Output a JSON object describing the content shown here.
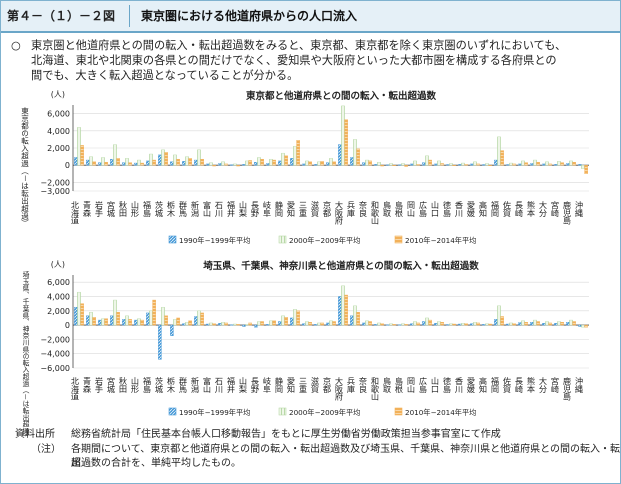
{
  "header": {
    "figure_number": "第４－（１）－２図",
    "title": "東京圏における他道府県からの人口流入"
  },
  "summary": {
    "bullet": "○",
    "lines": [
      "東京圏と他道府県との間の転入・転出超過数をみると、東京都、東京都を除く東京圏のいずれにおいても、",
      "北海道、東北や北関東の各県との間だけでなく、愛知県や大阪府といった大都市圏を構成する各府県との",
      "間でも、大きく転入超過となっていることが分かる。"
    ]
  },
  "colors": {
    "series_1990": "#4a9bd8",
    "series_2000": "#b9d9a9",
    "series_2010": "#f2b15a",
    "axis": "#444444",
    "grid": "#d9d9d9",
    "frame": "#7fb2cf"
  },
  "chart_data": [
    {
      "type": "bar",
      "title": "東京都と他道府県との間の転入・転出超過数",
      "unit_label": "(人)",
      "ylabel": "東京都の転入超過（－は転出超過）",
      "ylim": [
        -3000,
        7000
      ],
      "yticks": [
        7000,
        6000,
        4000,
        2000,
        0,
        -2000,
        -3000
      ],
      "ytick_labels": [
        "(人)",
        "6,000",
        "4,000",
        "2,000",
        "0",
        "−2,000",
        "−3,000"
      ],
      "categories": [
        "北海道",
        "青森",
        "岩手",
        "宮城",
        "秋田",
        "山形",
        "福島",
        "茨城",
        "栃木",
        "群馬",
        "新潟",
        "富山",
        "石川",
        "福井",
        "山梨",
        "長野",
        "岐阜",
        "静岡",
        "愛知",
        "三重",
        "滋賀",
        "京都",
        "大阪府",
        "兵庫",
        "奈良",
        "和歌山",
        "鳥取",
        "島根",
        "岡山",
        "広島",
        "山口",
        "徳島",
        "香川",
        "愛媛",
        "高知",
        "福岡",
        "佐賀",
        "長崎",
        "熊本",
        "大分",
        "宮崎",
        "鹿児島",
        "沖縄"
      ],
      "series": [
        {
          "name": "1990年−1999年平均",
          "values": [
            900,
            600,
            300,
            700,
            300,
            250,
            500,
            1200,
            400,
            450,
            600,
            150,
            200,
            50,
            100,
            350,
            200,
            500,
            800,
            150,
            100,
            300,
            2400,
            900,
            300,
            100,
            50,
            50,
            150,
            300,
            150,
            80,
            100,
            150,
            80,
            600,
            80,
            150,
            200,
            150,
            100,
            200,
            100
          ]
        },
        {
          "name": "2000年−2009年平均",
          "values": [
            4400,
            1000,
            900,
            2400,
            800,
            600,
            1300,
            1800,
            1200,
            1000,
            1800,
            300,
            400,
            150,
            500,
            900,
            700,
            1400,
            2200,
            500,
            400,
            800,
            6900,
            3000,
            600,
            350,
            200,
            200,
            500,
            1100,
            500,
            200,
            250,
            400,
            200,
            3300,
            250,
            500,
            600,
            400,
            450,
            500,
            -400
          ]
        },
        {
          "name": "2010年−2014年平均",
          "values": [
            2300,
            400,
            350,
            800,
            300,
            250,
            600,
            1500,
            700,
            800,
            700,
            -100,
            150,
            -100,
            550,
            700,
            600,
            1100,
            2900,
            400,
            450,
            400,
            5300,
            1900,
            500,
            -100,
            -50,
            -150,
            100,
            600,
            200,
            -50,
            100,
            150,
            -50,
            1700,
            150,
            300,
            350,
            150,
            300,
            350,
            -1000
          ]
        }
      ],
      "legend": [
        "1990年−1999年平均",
        "2000年−2009年平均",
        "2010年−2014年平均"
      ]
    },
    {
      "type": "bar",
      "title": "埼玉県、千葉県、神奈川県と他道府県との間の転入・転出超過数",
      "unit_label": "(人)",
      "ylabel": "埼玉県、千葉県、神奈川県の転入超過（－は転出超過）",
      "ylim": [
        -6000,
        7000
      ],
      "yticks": [
        7000,
        6000,
        4000,
        2000,
        0,
        -2000,
        -4000,
        -6000
      ],
      "ytick_labels": [
        "(人)",
        "6,000",
        "4,000",
        "2,000",
        "0",
        "−2,000",
        "−4,000",
        "−6,000"
      ],
      "categories": [
        "北海道",
        "青森",
        "岩手",
        "宮城",
        "秋田",
        "山形",
        "福島",
        "茨城",
        "栃木",
        "群馬",
        "新潟",
        "富山",
        "石川",
        "福井",
        "山梨",
        "長野",
        "岐阜",
        "静岡",
        "愛知",
        "三重",
        "滋賀",
        "京都",
        "大阪府",
        "兵庫",
        "奈良",
        "和歌山",
        "鳥取",
        "島根",
        "岡山",
        "広島",
        "山口",
        "徳島",
        "香川",
        "愛媛",
        "高知",
        "福岡",
        "佐賀",
        "長崎",
        "熊本",
        "大分",
        "宮崎",
        "鹿児島",
        "沖縄"
      ],
      "series": [
        {
          "name": "1990年−1999年平均",
          "values": [
            2500,
            1300,
            700,
            1300,
            800,
            700,
            1700,
            -4800,
            -1500,
            200,
            1200,
            150,
            250,
            50,
            -200,
            -300,
            100,
            500,
            1000,
            200,
            100,
            300,
            4000,
            1300,
            300,
            100,
            50,
            50,
            200,
            500,
            250,
            80,
            150,
            200,
            100,
            800,
            150,
            350,
            400,
            250,
            250,
            400,
            -200
          ]
        },
        {
          "name": "2000年−2009年平均",
          "values": [
            4600,
            1800,
            900,
            3500,
            1300,
            900,
            2000,
            2500,
            800,
            400,
            2000,
            300,
            400,
            150,
            100,
            500,
            600,
            1300,
            2200,
            500,
            300,
            600,
            5500,
            2700,
            600,
            300,
            200,
            200,
            500,
            1000,
            500,
            200,
            250,
            400,
            200,
            2700,
            300,
            600,
            700,
            500,
            500,
            700,
            -300
          ]
        },
        {
          "name": "2010年−2014年平均",
          "values": [
            3000,
            1100,
            900,
            1800,
            800,
            700,
            3500,
            1300,
            1000,
            600,
            1700,
            200,
            300,
            100,
            300,
            500,
            600,
            1100,
            2000,
            400,
            300,
            500,
            4200,
            1800,
            500,
            200,
            100,
            100,
            300,
            700,
            400,
            150,
            200,
            300,
            150,
            1200,
            200,
            400,
            500,
            300,
            400,
            500,
            -300
          ]
        }
      ],
      "legend": [
        "1990年−1999年平均",
        "2000年−2009年平均",
        "2010年−2014年平均"
      ]
    }
  ],
  "footer": {
    "source_label": "資料出所",
    "source_text": "総務省統計局「住民基本台帳人口移動報告」をもとに厚生労働省労働政策担当参事官室にて作成",
    "note_label": "（注）",
    "note_lines": [
      "各期間について、東京都と他道府県との間の転入・転出超過数及び埼玉県、千葉県、神奈川県と他道府県との間の転入・転出",
      "超過数の合計を、単純平均したもの。"
    ]
  }
}
